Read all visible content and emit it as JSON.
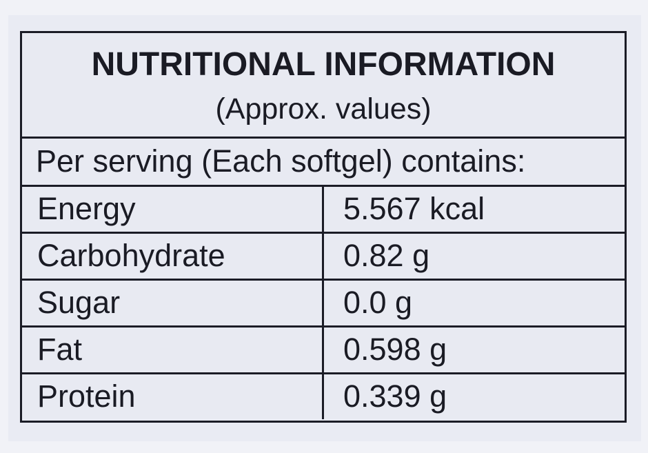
{
  "label": {
    "title": "NUTRITIONAL INFORMATION",
    "subtitle": "(Approx. values)",
    "serving_line": "Per serving (Each softgel) contains:",
    "rows": [
      {
        "nutrient": "Energy",
        "value": "5.567 kcal"
      },
      {
        "nutrient": "Carbohydrate",
        "value": "0.82 g"
      },
      {
        "nutrient": "Sugar",
        "value": "0.0 g"
      },
      {
        "nutrient": "Fat",
        "value": "0.598 g"
      },
      {
        "nutrient": "Protein",
        "value": "0.339 g"
      }
    ]
  },
  "colors": {
    "background": "#f1f2f7",
    "table_fill": "#e8eaf2",
    "ink": "#1a1b24"
  }
}
